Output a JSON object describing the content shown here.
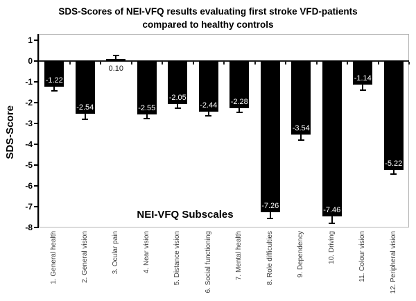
{
  "chart_data": {
    "type": "bar",
    "title": "SDS-Scores of NEI-VFQ results evaluating first stroke VFD-patients compared to healthy controls",
    "title_lines": [
      "SDS-Scores of NEI-VFQ results evaluating first stroke VFD-patients",
      "compared to healthy controls"
    ],
    "xlabel": "NEI-VFQ Subscales",
    "ylabel": "SDS-Score",
    "categories": [
      "1. General health",
      "2. General vision",
      "3. Ocular pain",
      "4. Near vision",
      "5. Distance vision",
      "6. Social functioning",
      "7. Mental health",
      "8. Role difficulties",
      "9. Dependency",
      "10. Driving",
      "11. Colour vision",
      "12. Peripheral vision"
    ],
    "values": [
      -1.22,
      -2.54,
      0.1,
      -2.55,
      -2.05,
      -2.44,
      -2.28,
      -7.26,
      -3.54,
      -7.46,
      -1.14,
      -5.22
    ],
    "value_labels": [
      "-1.22",
      "-2.54",
      "0.10",
      "-2.55",
      "-2.05",
      "-2.44",
      "-2.28",
      "-7.26",
      "-3.54",
      "-7.46",
      "-1.14",
      "-5.22"
    ],
    "errors": [
      0.22,
      0.25,
      0.2,
      0.2,
      0.2,
      0.18,
      0.2,
      0.32,
      0.27,
      0.33,
      0.27,
      0.22
    ],
    "yticks": [
      1,
      0,
      -1,
      -2,
      -3,
      -4,
      -5,
      -6,
      -7,
      -8
    ],
    "ylim": [
      -8,
      1.3
    ],
    "grid": false,
    "legend": false,
    "bar_color": "#000000",
    "value_label_color_inside": "#ffffff",
    "value_label_color_outside": "#1a1a1a",
    "category_label_color": "#3d3d3d",
    "axis_color": "#000000",
    "plot_border_color": "#b3b3b3"
  }
}
